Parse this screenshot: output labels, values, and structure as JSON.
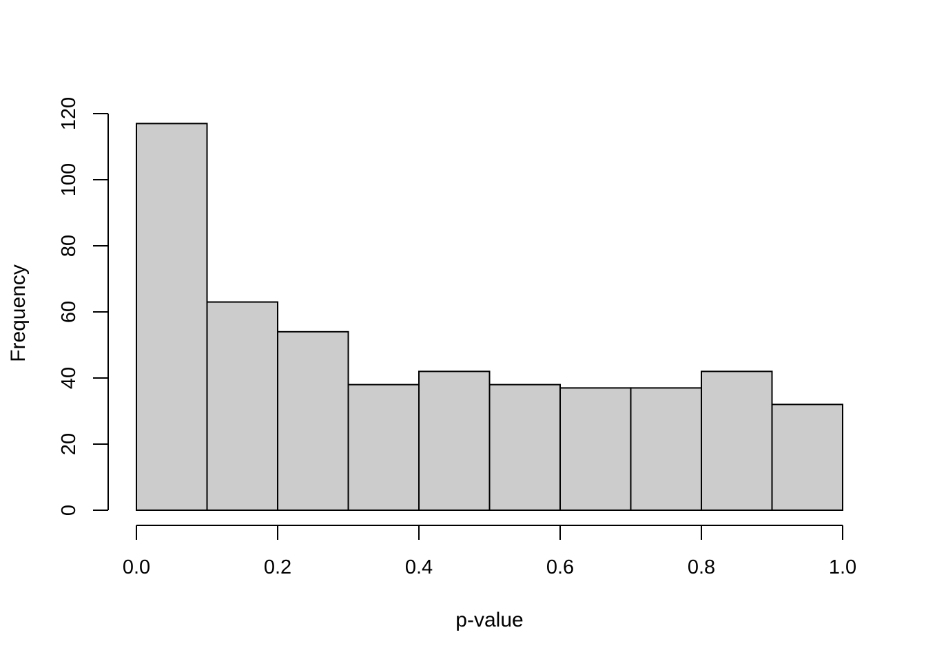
{
  "figure": {
    "background": "#ffffff",
    "text_color": "#000000"
  },
  "chart_data": {
    "type": "bar",
    "subtype": "histogram",
    "title": "",
    "xlabel": "p-value",
    "ylabel": "Frequency",
    "bin_edges": [
      0.0,
      0.1,
      0.2,
      0.3,
      0.4,
      0.5,
      0.6,
      0.7,
      0.8,
      0.9,
      1.0
    ],
    "categories": [
      "0.0-0.1",
      "0.1-0.2",
      "0.2-0.3",
      "0.3-0.4",
      "0.4-0.5",
      "0.5-0.6",
      "0.6-0.7",
      "0.7-0.8",
      "0.8-0.9",
      "0.9-1.0"
    ],
    "values": [
      117,
      63,
      54,
      38,
      42,
      38,
      37,
      37,
      42,
      32
    ],
    "xlim": [
      0.0,
      1.0
    ],
    "ylim": [
      0,
      120
    ],
    "x_tick_values": [
      0.0,
      0.2,
      0.4,
      0.6,
      0.8,
      1.0
    ],
    "x_tick_labels": [
      "0.0",
      "0.2",
      "0.4",
      "0.6",
      "0.8",
      "1.0"
    ],
    "y_tick_values": [
      0,
      20,
      40,
      60,
      80,
      100,
      120
    ],
    "y_tick_labels": [
      "0",
      "20",
      "40",
      "60",
      "80",
      "100",
      "120"
    ],
    "grid": false,
    "legend": null,
    "style": {
      "bar_fill": "#cccccc",
      "bar_border": "#000000",
      "axis_color": "#000000"
    }
  }
}
